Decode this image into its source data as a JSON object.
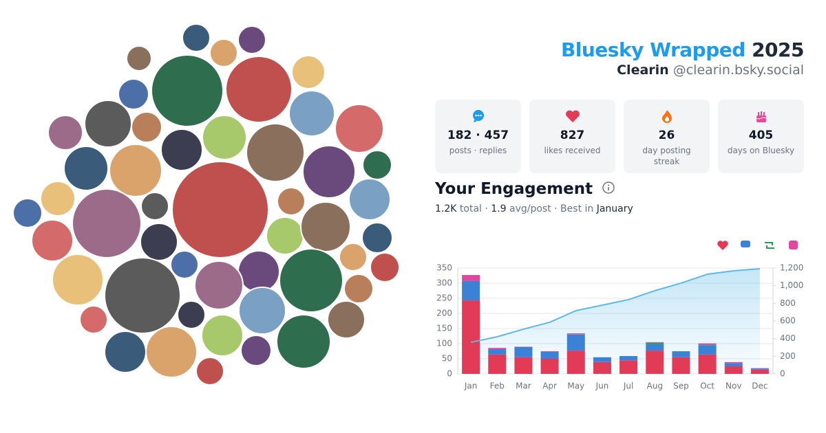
{
  "header": {
    "title": "Bluesky Wrapped",
    "year": "2025",
    "name": "Clearin",
    "handle": "@clearin.bsky.social"
  },
  "stats": [
    {
      "value": "182 · 457",
      "label": "posts · replies"
    },
    {
      "value": 827,
      "label": "likes received"
    },
    {
      "value": 26,
      "label": "day posting streak"
    },
    {
      "value": 405,
      "label": "days on Bluesky"
    }
  ],
  "engagement": {
    "title": "Your Engagement",
    "summary": [
      "1.2K",
      " total · ",
      "1.9",
      " avg/post · Best in ",
      "January"
    ]
  },
  "chart_data": {
    "type": "stacked-bar-line",
    "categories": [
      "Jan",
      "Feb",
      "Mar",
      "Apr",
      "May",
      "Jun",
      "Jul",
      "Aug",
      "Sep",
      "Oct",
      "Nov",
      "Dec"
    ],
    "series": [
      {
        "color": "#e23b57",
        "values": [
          243,
          64,
          55,
          50,
          77,
          39,
          45,
          77,
          55,
          64,
          25,
          14
        ]
      },
      {
        "color": "#3b82d6",
        "values": [
          64,
          18,
          34,
          23,
          53,
          16,
          14,
          21,
          18,
          31,
          11,
          4
        ]
      },
      {
        "color": "#22a05a",
        "values": [
          0,
          0,
          0,
          0,
          1,
          0,
          0,
          5,
          2,
          2,
          0,
          0
        ]
      },
      {
        "color": "#e0479e",
        "values": [
          20,
          4,
          1,
          2,
          3,
          0,
          0,
          2,
          0,
          4,
          3,
          1
        ]
      }
    ],
    "line": {
      "color": "#5bb8e8",
      "axis": "y2",
      "values": [
        358,
        421,
        507,
        585,
        717,
        779,
        842,
        943,
        1029,
        1130,
        1169,
        1192
      ]
    },
    "ylim": [
      0,
      350
    ],
    "yticks": [
      0,
      50,
      100,
      150,
      200,
      250,
      300,
      350
    ],
    "y2lim": [
      0,
      1200
    ],
    "y2ticks": [
      0,
      200,
      400,
      600,
      800,
      {
        "value": 1000,
        "label": "1,000"
      },
      {
        "value": 1200,
        "label": "1,200"
      }
    ],
    "grid": true
  }
}
